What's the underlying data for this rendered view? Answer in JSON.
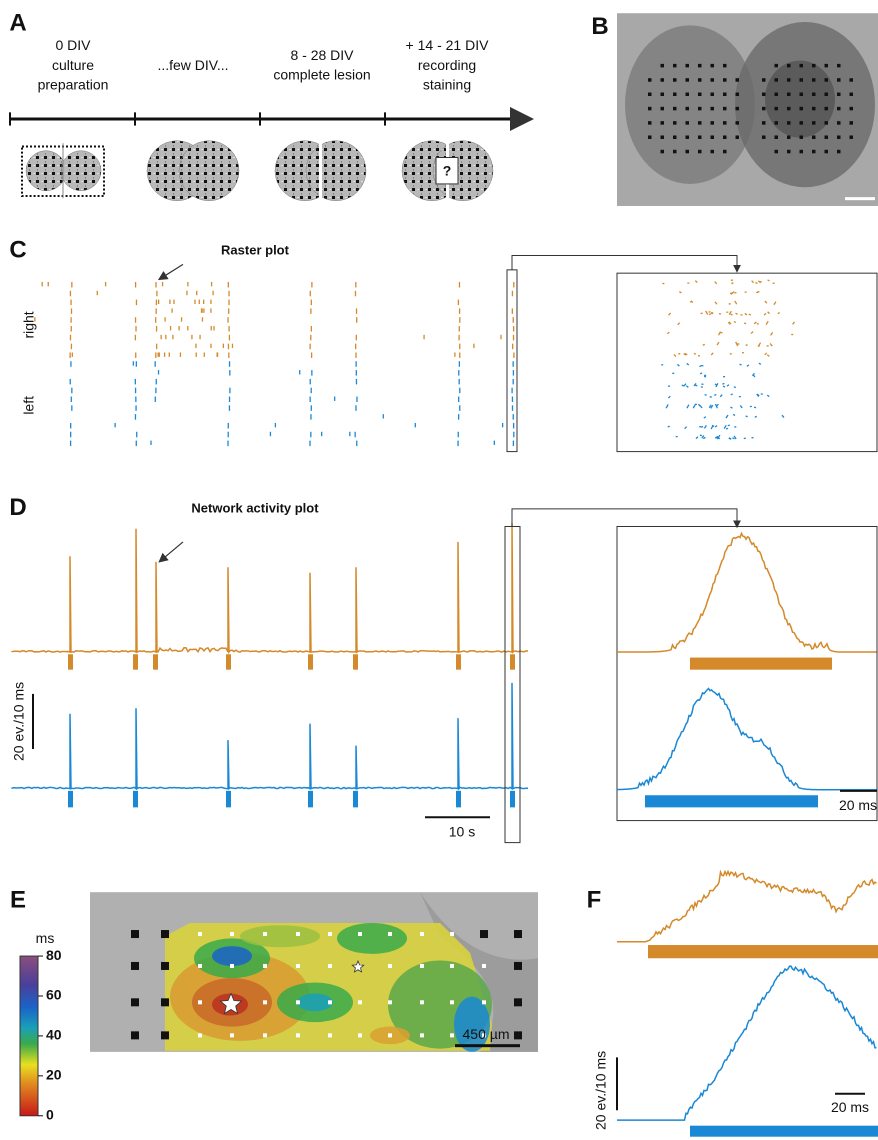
{
  "A": {
    "label": "A",
    "steps": [
      [
        "0 DIV",
        "culture",
        "preparation"
      ],
      [
        "...few DIV..."
      ],
      [
        "8 - 28 DIV",
        "complete lesion"
      ],
      [
        "+ 14 - 21 DIV",
        "recording",
        "staining"
      ]
    ],
    "question": "?"
  },
  "B": {
    "label": "B"
  },
  "C": {
    "label": "C",
    "title": "Raster plot",
    "rows": [
      "right",
      "left"
    ]
  },
  "D": {
    "label": "D",
    "title": "Network activity plot",
    "y_scale": "20 ev./10 ms",
    "x_scale": "10 s",
    "inset_x_scale": "20 ms"
  },
  "E": {
    "label": "E",
    "colorbar_unit": "ms",
    "colorbar_ticks": [
      80,
      60,
      40,
      20,
      0
    ],
    "scale": "450 µm"
  },
  "F": {
    "label": "F",
    "y_scale": "20 ev./10 ms",
    "x_scale": "20 ms"
  }
}
